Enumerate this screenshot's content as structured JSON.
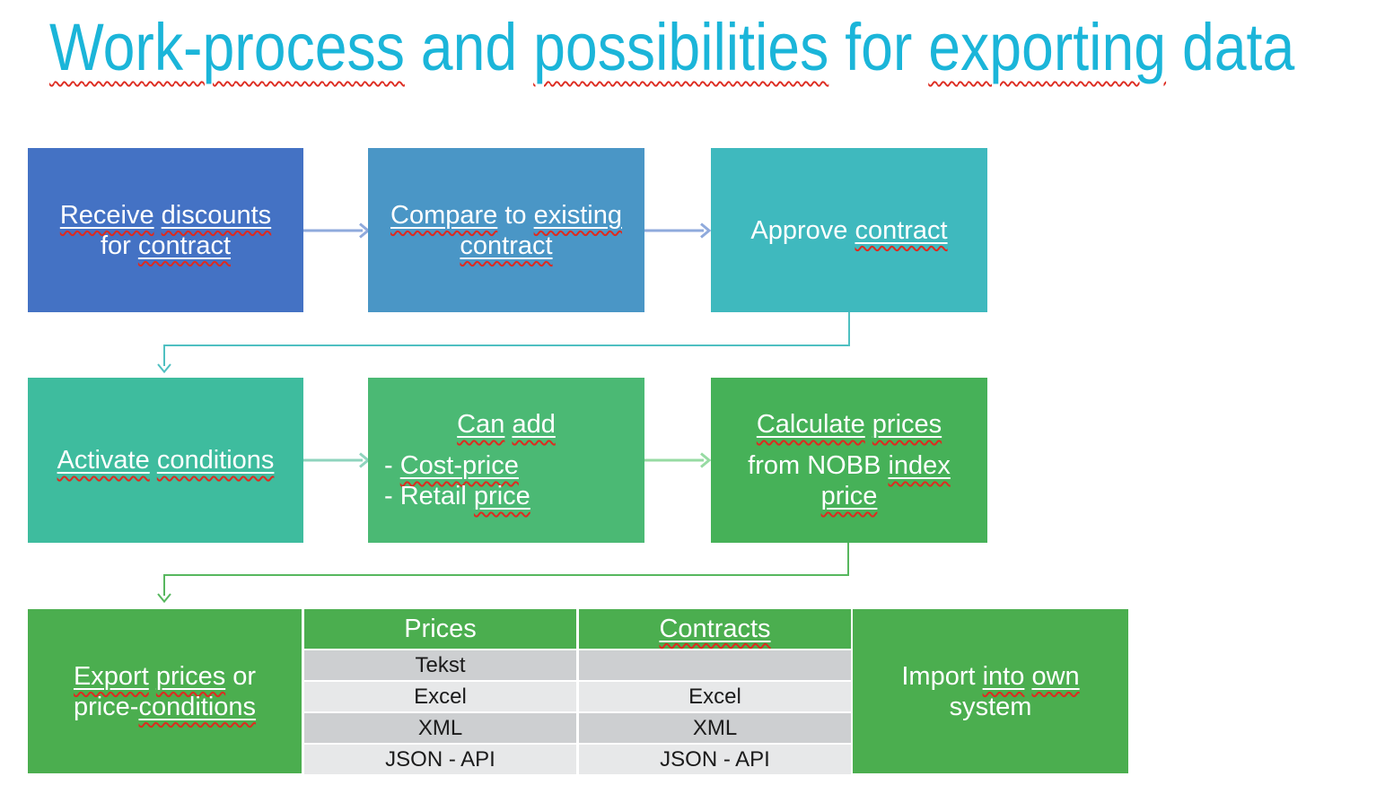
{
  "title": {
    "runs": [
      {
        "t": "Work-process",
        "s": true
      },
      {
        "t": " and "
      },
      {
        "t": "possibilities",
        "s": true
      },
      {
        "t": " for "
      },
      {
        "t": "exporting",
        "s": true
      },
      {
        "t": " data"
      }
    ]
  },
  "boxes": {
    "receive": {
      "bg": "#4472C4",
      "lines": [
        {
          "align": "center",
          "runs": [
            {
              "t": "Receive",
              "u": true,
              "s": true
            },
            {
              "t": " "
            },
            {
              "t": "discounts",
              "u": true,
              "s": true
            }
          ]
        },
        {
          "align": "center",
          "runs": [
            {
              "t": "for "
            },
            {
              "t": "contract",
              "u": true,
              "s": true
            }
          ]
        }
      ]
    },
    "compare": {
      "bg": "#4A96C6",
      "lines": [
        {
          "align": "center",
          "runs": [
            {
              "t": "Compare",
              "u": true,
              "s": true
            },
            {
              "t": " to "
            },
            {
              "t": "existing",
              "u": true,
              "s": true
            }
          ]
        },
        {
          "align": "center",
          "runs": [
            {
              "t": "contract",
              "u": true,
              "s": true
            }
          ]
        }
      ]
    },
    "approve": {
      "bg": "#3FB9BE",
      "lines": [
        {
          "align": "center",
          "runs": [
            {
              "t": "Approve "
            },
            {
              "t": "contract",
              "u": true,
              "s": true
            }
          ]
        }
      ]
    },
    "activate": {
      "bg": "#3EBC9E",
      "lines": [
        {
          "align": "center",
          "runs": [
            {
              "t": "Activate",
              "u": true,
              "s": true
            },
            {
              "t": " "
            },
            {
              "t": "conditions",
              "u": true,
              "s": true
            }
          ]
        }
      ]
    },
    "can_add": {
      "bg": "#4BB974",
      "lines": [
        {
          "align": "center",
          "runs": [
            {
              "t": "Can",
              "u": true,
              "s": true
            },
            {
              "t": " "
            },
            {
              "t": "add",
              "u": true,
              "s": true
            }
          ]
        },
        {
          "align": "left",
          "mt": 12,
          "runs": [
            {
              "t": "- "
            },
            {
              "t": "Cost-price",
              "u": true,
              "s": true
            }
          ]
        },
        {
          "align": "left",
          "runs": [
            {
              "t": "- Retail "
            },
            {
              "t": "price",
              "u": true,
              "s": true
            }
          ]
        }
      ]
    },
    "calculate": {
      "bg": "#46B158",
      "lines": [
        {
          "align": "center",
          "runs": [
            {
              "t": "Calculate",
              "u": true,
              "s": true
            },
            {
              "t": " "
            },
            {
              "t": "prices",
              "u": true,
              "s": true
            }
          ]
        },
        {
          "align": "center",
          "mt": 12,
          "runs": [
            {
              "t": "from NOBB "
            },
            {
              "t": "index",
              "u": true,
              "s": true
            }
          ]
        },
        {
          "align": "center",
          "runs": [
            {
              "t": "price",
              "u": true,
              "s": true
            }
          ]
        }
      ]
    },
    "export": {
      "bg": "#4BAE4F",
      "lines": [
        {
          "align": "center",
          "runs": [
            {
              "t": "Export",
              "u": true,
              "s": true
            },
            {
              "t": " "
            },
            {
              "t": "prices",
              "u": true,
              "s": true
            },
            {
              "t": " or"
            }
          ]
        },
        {
          "align": "center",
          "runs": [
            {
              "t": "price-"
            },
            {
              "t": "conditions",
              "u": true,
              "s": true
            }
          ]
        }
      ]
    },
    "import": {
      "bg": "#4BAE4F",
      "lines": [
        {
          "align": "center",
          "runs": [
            {
              "t": "Import "
            },
            {
              "t": "into",
              "u": true,
              "s": true
            },
            {
              "t": " "
            },
            {
              "t": "own",
              "u": true,
              "s": true
            }
          ]
        },
        {
          "align": "center",
          "runs": [
            {
              "t": "system"
            }
          ]
        }
      ]
    }
  },
  "table": {
    "headers": [
      {
        "label": "Prices",
        "runs": [
          {
            "t": "Prices"
          }
        ]
      },
      {
        "label": "Contracts",
        "runs": [
          {
            "t": "Contracts",
            "u": true,
            "s": true
          }
        ]
      }
    ],
    "rows": [
      [
        "Tekst",
        ""
      ],
      [
        "Excel",
        "Excel"
      ],
      [
        "XML",
        "XML"
      ],
      [
        "JSON - API",
        "JSON - API"
      ]
    ]
  },
  "colors": {
    "title_text": "#1BB5D9",
    "box_blue": "#4472C4",
    "box_mid_blue": "#4A96C6",
    "box_teal": "#3FB9BE",
    "box_teal_green": "#3EBC9E",
    "box_green_medium": "#4BB974",
    "box_green": "#46B158",
    "box_green_dark": "#4BAE4F",
    "table_row_dark": "#CDCFD1",
    "table_row_light": "#E7E8E9",
    "spellcheck_red": "#DD2B20",
    "arrow_blue": "#8FAADC",
    "arrow_teal": "#4FC0C1",
    "arrow_teal_light": "#8FD4BE",
    "arrow_green_light": "#97DBA3",
    "arrow_green": "#57B75E",
    "text_white": "#FFFFFF",
    "text_black": "#1A1A1A"
  }
}
